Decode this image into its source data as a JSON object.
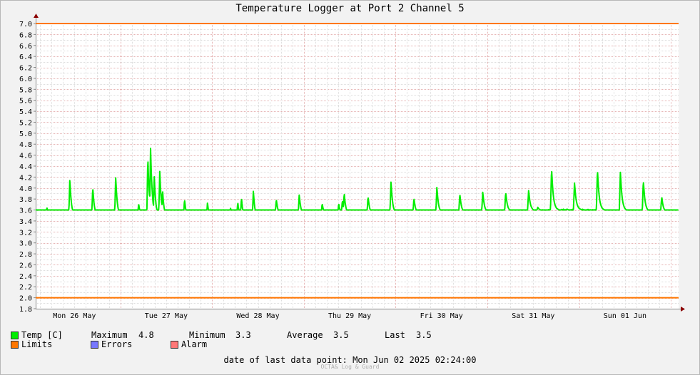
{
  "chart_data": {
    "type": "line",
    "title": "Temperature Logger at Port 2 Channel 5",
    "ylim": [
      1.8,
      7.0
    ],
    "ytick_labels": [
      "1.8",
      "2.0",
      "2.2",
      "2.4",
      "2.6",
      "2.8",
      "3.0",
      "3.2",
      "3.4",
      "3.6",
      "3.8",
      "4.0",
      "4.2",
      "4.4",
      "4.6",
      "4.8",
      "5.0",
      "5.2",
      "5.4",
      "5.6",
      "5.8",
      "6.0",
      "6.2",
      "6.4",
      "6.6",
      "6.8",
      "7.0"
    ],
    "x_day_labels": [
      "Mon 26 May",
      "Tue 27 May",
      "Wed 28 May",
      "Thu 29 May",
      "Fri 30 May",
      "Sat 31 May",
      "Sun 01 Jun"
    ],
    "xlim_days": [
      0,
      6.85
    ],
    "grid": true,
    "limits": {
      "upper": 7.0,
      "lower": 2.0
    },
    "series": [
      {
        "name": "Temp [C]",
        "color": "#00ee00",
        "baseline": [
          [
            0,
            3.48
          ],
          [
            0.5,
            3.47
          ],
          [
            1.0,
            3.46
          ],
          [
            1.5,
            3.44
          ],
          [
            2.0,
            3.42
          ],
          [
            2.5,
            3.42
          ],
          [
            2.7,
            3.5
          ],
          [
            3.5,
            3.5
          ],
          [
            4.0,
            3.52
          ],
          [
            4.5,
            3.53
          ],
          [
            5.0,
            3.55
          ],
          [
            5.25,
            3.57
          ],
          [
            5.75,
            3.6
          ],
          [
            6.0,
            3.6
          ],
          [
            6.5,
            3.58
          ],
          [
            6.85,
            3.55
          ]
        ],
        "spikes": [
          [
            0.2,
            3.65
          ],
          [
            0.45,
            4.15
          ],
          [
            0.7,
            4.02
          ],
          [
            0.95,
            4.2
          ],
          [
            1.2,
            3.72
          ],
          [
            1.3,
            4.58
          ],
          [
            1.33,
            4.75
          ],
          [
            1.37,
            4.22
          ],
          [
            1.43,
            4.32
          ],
          [
            1.46,
            3.98
          ],
          [
            1.7,
            3.8
          ],
          [
            1.95,
            3.73
          ],
          [
            2.2,
            3.65
          ],
          [
            2.28,
            3.75
          ],
          [
            2.32,
            3.83
          ],
          [
            2.45,
            3.95
          ],
          [
            2.7,
            3.8
          ],
          [
            2.95,
            3.88
          ],
          [
            3.2,
            3.72
          ],
          [
            3.38,
            3.72
          ],
          [
            3.44,
            3.92
          ],
          [
            3.42,
            3.78
          ],
          [
            3.7,
            3.85
          ],
          [
            3.95,
            4.12
          ],
          [
            4.2,
            3.82
          ],
          [
            4.45,
            4.02
          ],
          [
            4.7,
            3.9
          ],
          [
            4.95,
            3.93
          ],
          [
            5.2,
            3.93
          ],
          [
            5.45,
            3.96
          ],
          [
            5.55,
            3.65
          ],
          [
            5.7,
            4.37
          ],
          [
            5.95,
            4.1
          ],
          [
            6.2,
            4.35
          ],
          [
            6.45,
            4.3
          ],
          [
            6.7,
            4.15
          ],
          [
            6.9,
            3.85
          ]
        ],
        "noise": 0.015
      }
    ],
    "legend": {
      "temp_label": "Temp [C]",
      "maximum_label": "Maximum",
      "maximum_value": "4.8",
      "minimum_label": "Minimum",
      "minimum_value": "3.3",
      "average_label": "Average",
      "average_value": "3.5",
      "last_label": "Last",
      "last_value": "3.5",
      "limits_label": "Limits",
      "errors_label": "Errors",
      "alarm_label": "Alarm",
      "temp_color": "#00ee00",
      "limits_color": "#ff7700",
      "errors_color": "#7777ff",
      "alarm_color": "#ff7777"
    }
  },
  "footer": {
    "date_label": "date of last data point:",
    "date_value": "Mon Jun 02 2025 02:24:00",
    "credit": "OCTA& Log & Guard"
  }
}
